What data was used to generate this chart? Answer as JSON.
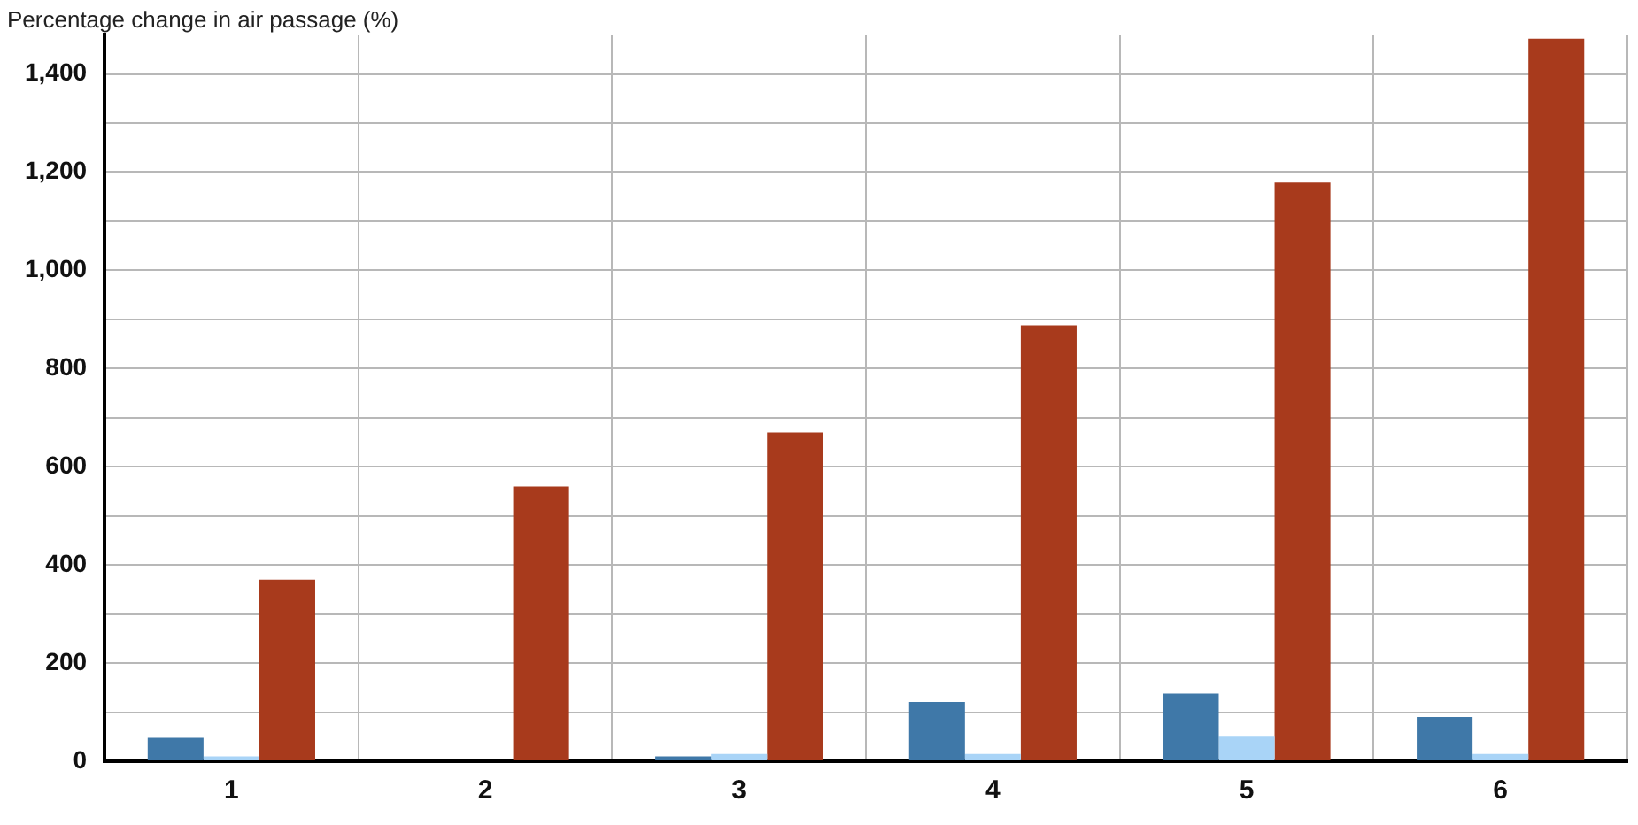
{
  "chart_data": {
    "type": "bar",
    "ylabel": "Percentage change in air passage (%)",
    "categories": [
      "1",
      "2",
      "3",
      "4",
      "5",
      "6"
    ],
    "series": [
      {
        "color": "#3f78a8",
        "values": [
          48,
          0,
          10,
          121,
          138,
          90
        ]
      },
      {
        "color": "#a9d4f7",
        "values": [
          10,
          0,
          15,
          15,
          50,
          15
        ]
      },
      {
        "color": "#a83a1c",
        "values": [
          370,
          560,
          670,
          888,
          1179,
          1472
        ]
      }
    ],
    "ylim": [
      0,
      1480
    ],
    "yticks": [
      0,
      {
        "value": 100,
        "label": null
      },
      {
        "value": 200,
        "label": "200"
      },
      {
        "value": 300,
        "label": null
      },
      {
        "value": 400,
        "label": "400"
      },
      {
        "value": 500,
        "label": null
      },
      {
        "value": 600,
        "label": "600"
      },
      {
        "value": 700,
        "label": null
      },
      {
        "value": 800,
        "label": "800"
      },
      {
        "value": 900,
        "label": null
      },
      {
        "value": 1000,
        "label": "1,000"
      },
      {
        "value": 1100,
        "label": null
      },
      {
        "value": 1200,
        "label": "1,200"
      },
      {
        "value": 1300,
        "label": null
      },
      {
        "value": 1400,
        "label": "1,400"
      }
    ],
    "grid": true,
    "legend": false
  }
}
